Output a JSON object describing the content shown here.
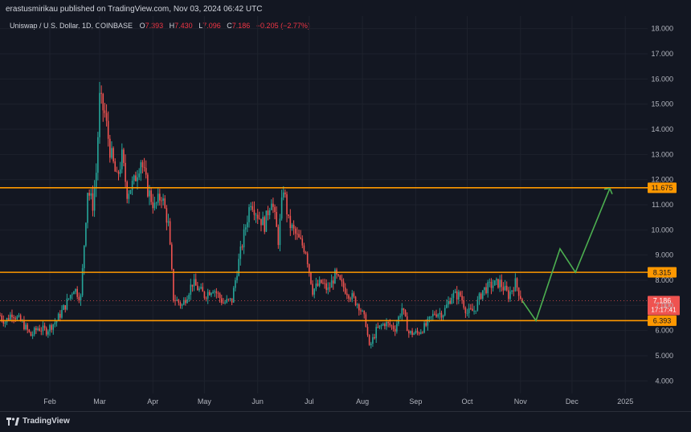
{
  "header": {
    "published": "erastusmirikau published on TradingView.com, Nov 03, 2024 06:42 UTC"
  },
  "symbol": {
    "name": "Uniswap / U.S. Dollar, 1D, COINBASE",
    "open_label": "O",
    "open": "7.393",
    "high_label": "H",
    "high": "7.430",
    "low_label": "L",
    "low": "7.096",
    "close_label": "C",
    "close": "7.186",
    "change": "−0.205 (−2.77%)"
  },
  "footer": {
    "brand": "TradingView"
  },
  "colors": {
    "background": "#131722",
    "up": "#26a69a",
    "down": "#ef5350",
    "level_line": "#ff9800",
    "projection": "#4caf50",
    "grid": "#1e222d",
    "text": "#b2b5be"
  },
  "chart_data": {
    "type": "candlestick",
    "symbol": "UNIUSD",
    "interval": "1D",
    "ylim": [
      3.5,
      18.5
    ],
    "y_ticks": [
      4,
      5,
      6,
      7,
      8,
      9,
      10,
      11,
      12,
      13,
      14,
      15,
      16,
      17,
      18
    ],
    "y_tick_labels": [
      "4.000",
      "5.000",
      "6.000",
      "7.000",
      "8.000",
      "9.000",
      "10.000",
      "11.000",
      "12.000",
      "13.000",
      "14.000",
      "15.000",
      "16.000",
      "17.000",
      "18.000"
    ],
    "x_labels": [
      "Feb",
      "Mar",
      "Apr",
      "May",
      "Jun",
      "Jul",
      "Aug",
      "Sep",
      "Oct",
      "Nov",
      "Dec",
      "2025"
    ],
    "x_label_dates": [
      "2024-02-01",
      "2024-03-01",
      "2024-04-01",
      "2024-05-01",
      "2024-06-01",
      "2024-07-01",
      "2024-08-01",
      "2024-09-01",
      "2024-10-01",
      "2024-11-01",
      "2024-12-01",
      "2025-01-01"
    ],
    "x_range": [
      "2024-01-03",
      "2025-01-14"
    ],
    "horizontal_levels": [
      {
        "value": 11.675,
        "label": "11.675"
      },
      {
        "value": 8.315,
        "label": "8.315"
      },
      {
        "value": 6.393,
        "label": "6.393"
      }
    ],
    "last_price": {
      "value": 7.186,
      "label": "7.186",
      "countdown": "17:17:41"
    },
    "projection_path": [
      {
        "date": "2024-11-02",
        "price": 7.186
      },
      {
        "date": "2024-11-10",
        "price": 6.393
      },
      {
        "date": "2024-11-24",
        "price": 9.25
      },
      {
        "date": "2024-12-03",
        "price": 8.315
      },
      {
        "date": "2024-12-23",
        "price": 11.65
      }
    ],
    "close_path": [
      {
        "date": "2024-01-03",
        "price": 6.6
      },
      {
        "date": "2024-01-06",
        "price": 6.35
      },
      {
        "date": "2024-01-10",
        "price": 6.7
      },
      {
        "date": "2024-01-16",
        "price": 6.3
      },
      {
        "date": "2024-01-21",
        "price": 5.8
      },
      {
        "date": "2024-01-25",
        "price": 6.1
      },
      {
        "date": "2024-01-30",
        "price": 6.0
      },
      {
        "date": "2024-02-05",
        "price": 6.4
      },
      {
        "date": "2024-02-10",
        "price": 7.0
      },
      {
        "date": "2024-02-15",
        "price": 7.7
      },
      {
        "date": "2024-02-19",
        "price": 7.3
      },
      {
        "date": "2024-02-23",
        "price": 11.6
      },
      {
        "date": "2024-02-26",
        "price": 11.0
      },
      {
        "date": "2024-02-28",
        "price": 12.3
      },
      {
        "date": "2024-03-01",
        "price": 15.2
      },
      {
        "date": "2024-03-04",
        "price": 14.6
      },
      {
        "date": "2024-03-07",
        "price": 13.2
      },
      {
        "date": "2024-03-11",
        "price": 12.0
      },
      {
        "date": "2024-03-14",
        "price": 12.9
      },
      {
        "date": "2024-03-17",
        "price": 11.5
      },
      {
        "date": "2024-03-21",
        "price": 11.9
      },
      {
        "date": "2024-03-25",
        "price": 12.8
      },
      {
        "date": "2024-03-29",
        "price": 11.6
      },
      {
        "date": "2024-04-02",
        "price": 10.9
      },
      {
        "date": "2024-04-06",
        "price": 11.4
      },
      {
        "date": "2024-04-10",
        "price": 10.2
      },
      {
        "date": "2024-04-13",
        "price": 7.3
      },
      {
        "date": "2024-04-18",
        "price": 7.0
      },
      {
        "date": "2024-04-24",
        "price": 7.9
      },
      {
        "date": "2024-05-01",
        "price": 7.4
      },
      {
        "date": "2024-05-06",
        "price": 7.7
      },
      {
        "date": "2024-05-12",
        "price": 7.1
      },
      {
        "date": "2024-05-17",
        "price": 7.2
      },
      {
        "date": "2024-05-20",
        "price": 8.4
      },
      {
        "date": "2024-05-24",
        "price": 9.8
      },
      {
        "date": "2024-05-28",
        "price": 11.2
      },
      {
        "date": "2024-06-01",
        "price": 10.6
      },
      {
        "date": "2024-06-05",
        "price": 10.2
      },
      {
        "date": "2024-06-09",
        "price": 11.3
      },
      {
        "date": "2024-06-13",
        "price": 9.6
      },
      {
        "date": "2024-06-16",
        "price": 11.7
      },
      {
        "date": "2024-06-19",
        "price": 10.3
      },
      {
        "date": "2024-06-24",
        "price": 9.7
      },
      {
        "date": "2024-06-29",
        "price": 9.2
      },
      {
        "date": "2024-07-03",
        "price": 7.6
      },
      {
        "date": "2024-07-08",
        "price": 7.9
      },
      {
        "date": "2024-07-12",
        "price": 7.6
      },
      {
        "date": "2024-07-16",
        "price": 8.2
      },
      {
        "date": "2024-07-20",
        "price": 7.8
      },
      {
        "date": "2024-07-25",
        "price": 7.4
      },
      {
        "date": "2024-07-30",
        "price": 7.0
      },
      {
        "date": "2024-08-03",
        "price": 6.3
      },
      {
        "date": "2024-08-05",
        "price": 5.3
      },
      {
        "date": "2024-08-09",
        "price": 6.0
      },
      {
        "date": "2024-08-14",
        "price": 6.3
      },
      {
        "date": "2024-08-20",
        "price": 6.1
      },
      {
        "date": "2024-08-24",
        "price": 6.9
      },
      {
        "date": "2024-08-28",
        "price": 5.9
      },
      {
        "date": "2024-09-02",
        "price": 5.9
      },
      {
        "date": "2024-09-07",
        "price": 6.2
      },
      {
        "date": "2024-09-12",
        "price": 6.7
      },
      {
        "date": "2024-09-17",
        "price": 6.7
      },
      {
        "date": "2024-09-22",
        "price": 7.4
      },
      {
        "date": "2024-09-27",
        "price": 7.4
      },
      {
        "date": "2024-10-01",
        "price": 6.7
      },
      {
        "date": "2024-10-05",
        "price": 6.8
      },
      {
        "date": "2024-10-10",
        "price": 7.6
      },
      {
        "date": "2024-10-15",
        "price": 7.8
      },
      {
        "date": "2024-10-20",
        "price": 7.9
      },
      {
        "date": "2024-10-25",
        "price": 7.4
      },
      {
        "date": "2024-10-29",
        "price": 7.9
      },
      {
        "date": "2024-11-02",
        "price": 7.186
      }
    ]
  }
}
